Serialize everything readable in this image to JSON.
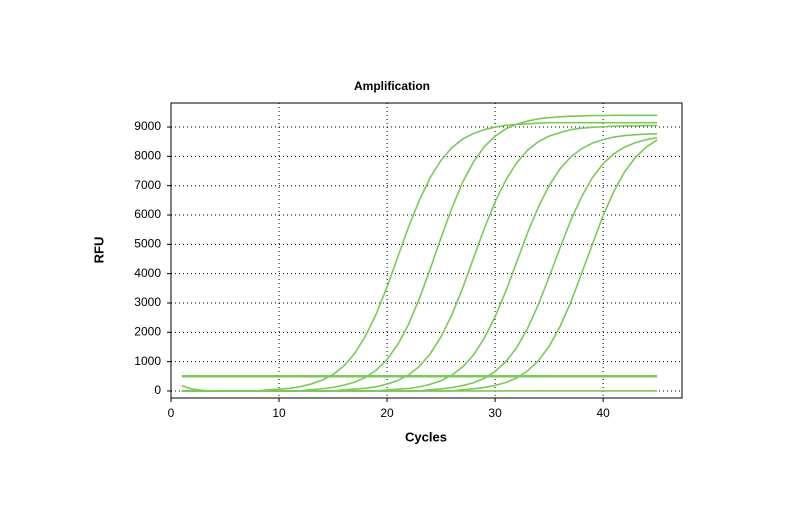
{
  "chart_data": {
    "type": "line",
    "title": "Amplification",
    "x_label": "Cycles",
    "y_label": "RFU",
    "x": [
      1,
      2,
      3,
      4,
      5,
      6,
      7,
      8,
      9,
      10,
      11,
      12,
      13,
      14,
      15,
      16,
      17,
      18,
      19,
      20,
      21,
      22,
      23,
      24,
      25,
      26,
      27,
      28,
      29,
      30,
      31,
      32,
      33,
      34,
      35,
      36,
      37,
      38,
      39,
      40,
      41,
      42,
      43,
      44,
      45
    ],
    "series": [
      {
        "color": "#7cc85a",
        "values": [
          0,
          0,
          0,
          0,
          0,
          0,
          0,
          0,
          40,
          60,
          90,
          150,
          240,
          370,
          560,
          850,
          1280,
          1870,
          2630,
          3550,
          4580,
          5600,
          6520,
          7280,
          7870,
          8300,
          8590,
          8780,
          8910,
          9000,
          9060,
          9090,
          9110,
          9130,
          9150,
          9150,
          9150,
          9150,
          9150,
          9150,
          9150,
          9150,
          9150,
          9150,
          9150
        ]
      },
      {
        "color": "#7cc85a",
        "values": [
          0,
          0,
          0,
          0,
          0,
          0,
          0,
          0,
          0,
          0,
          0,
          0,
          47,
          75,
          122,
          197,
          300,
          460,
          714,
          1070,
          1590,
          2280,
          3160,
          4170,
          5230,
          6240,
          7120,
          7810,
          8330,
          8690,
          8940,
          9100,
          9200,
          9280,
          9320,
          9350,
          9370,
          9380,
          9390,
          9390,
          9400,
          9400,
          9400,
          9400,
          9400
        ]
      },
      {
        "color": "#7cc85a",
        "values": [
          0,
          0,
          0,
          0,
          0,
          0,
          0,
          0,
          0,
          0,
          0,
          0,
          0,
          0,
          0,
          36,
          63,
          90,
          145,
          235,
          360,
          550,
          840,
          1270,
          1850,
          2600,
          3510,
          4530,
          5540,
          6450,
          7200,
          7780,
          8210,
          8500,
          8690,
          8810,
          8910,
          8960,
          8990,
          9010,
          9030,
          9040,
          9040,
          9050,
          9050
        ]
      },
      {
        "color": "#7cc85a",
        "values": [
          0,
          0,
          0,
          0,
          0,
          0,
          0,
          0,
          0,
          0,
          0,
          0,
          0,
          0,
          0,
          0,
          0,
          0,
          0,
          35,
          62,
          88,
          140,
          230,
          350,
          540,
          820,
          1230,
          1800,
          2530,
          3410,
          4400,
          5390,
          6270,
          7000,
          7570,
          7980,
          8260,
          8450,
          8570,
          8660,
          8710,
          8740,
          8760,
          8770
        ]
      },
      {
        "color": "#7cc85a",
        "values": [
          0,
          0,
          0,
          0,
          0,
          0,
          0,
          0,
          0,
          0,
          0,
          0,
          0,
          0,
          0,
          0,
          0,
          0,
          0,
          0,
          0,
          0,
          0,
          44,
          70,
          114,
          184,
          280,
          430,
          665,
          1000,
          1480,
          2130,
          2940,
          3890,
          4870,
          5810,
          6620,
          7270,
          7750,
          8090,
          8320,
          8470,
          8570,
          8640
        ]
      },
      {
        "color": "#7cc85a",
        "values": [
          0,
          0,
          0,
          0,
          0,
          0,
          0,
          0,
          0,
          0,
          0,
          0,
          0,
          0,
          0,
          0,
          0,
          0,
          0,
          0,
          0,
          0,
          0,
          0,
          0,
          0,
          45,
          72,
          117,
          189,
          288,
          441,
          684,
          1030,
          1520,
          2190,
          3020,
          4000,
          5000,
          5980,
          6810,
          7480,
          7970,
          8320,
          8560
        ]
      },
      {
        "color": "#7cc85a",
        "values": [
          180,
          60,
          20,
          0,
          0,
          0,
          0,
          0,
          0,
          0,
          0,
          0,
          0,
          0,
          0,
          0,
          0,
          0,
          0,
          0,
          0,
          0,
          0,
          0,
          0,
          0,
          0,
          0,
          0,
          0,
          0,
          0,
          0,
          0,
          0,
          0,
          0,
          0,
          0,
          0,
          0,
          0,
          0,
          0,
          0
        ]
      }
    ],
    "threshold": 500,
    "threshold_color": "#7cc85a",
    "xlim": [
      0,
      47.3
    ],
    "xticks": [
      0,
      10,
      20,
      30,
      40
    ],
    "ylim": [
      -240,
      9820
    ],
    "yticks": [
      0,
      1000,
      2000,
      3000,
      4000,
      5000,
      6000,
      7000,
      8000,
      9000
    ],
    "grid": true
  }
}
